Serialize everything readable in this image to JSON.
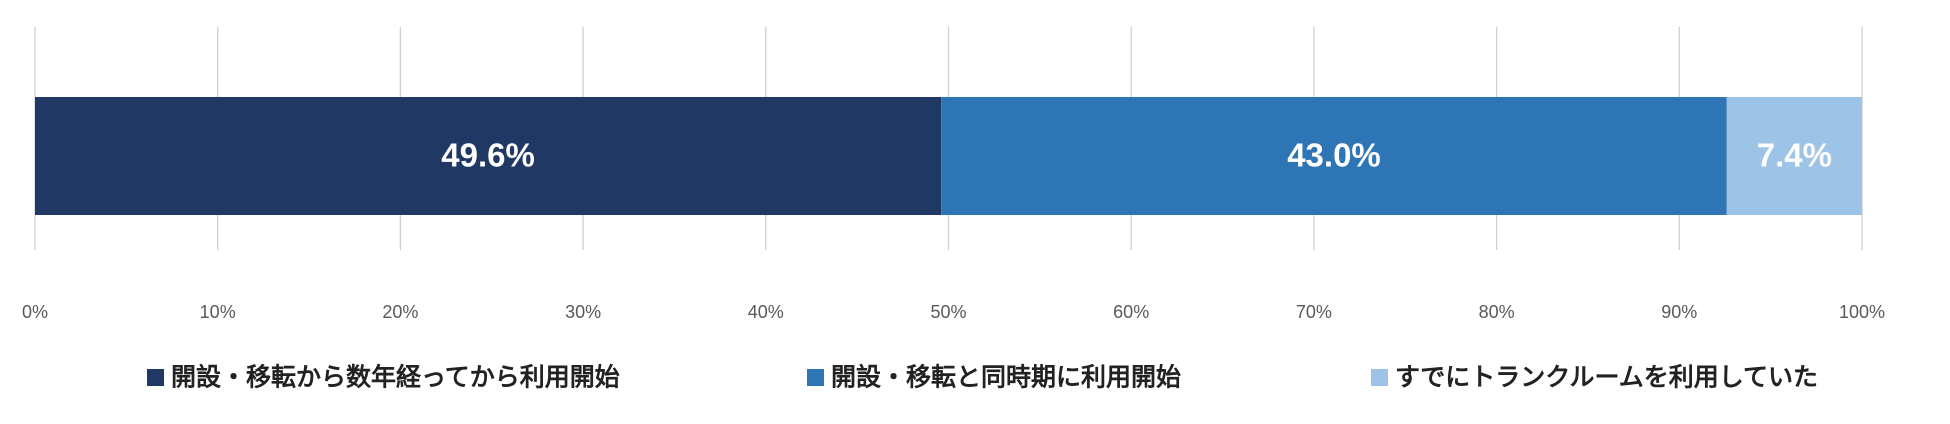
{
  "chart_data": {
    "type": "stacked-bar-horizontal",
    "categories": [
      null
    ],
    "series": [
      {
        "name": "開設・移転から数年経ってから利用開始",
        "color": "#203864",
        "values": [
          49.6
        ],
        "value_labels": [
          "49.6%"
        ]
      },
      {
        "name": "開設・移転と同時期に利用開始",
        "color": "#2e75b6",
        "values": [
          43.0
        ],
        "value_labels": [
          "43.0%"
        ]
      },
      {
        "name": "すでにトランクルームを利用していた",
        "color": "#9dc3e6",
        "values": [
          7.4
        ],
        "value_labels": [
          "7.4%"
        ]
      }
    ],
    "xlim": [
      0,
      100
    ],
    "xticks": [
      {
        "value": 0,
        "label": "0%"
      },
      {
        "value": 10,
        "label": "10%"
      },
      {
        "value": 20,
        "label": "20%"
      },
      {
        "value": 30,
        "label": "30%"
      },
      {
        "value": 40,
        "label": "40%"
      },
      {
        "value": 50,
        "label": "50%"
      },
      {
        "value": 60,
        "label": "60%"
      },
      {
        "value": 70,
        "label": "70%"
      },
      {
        "value": 80,
        "label": "80%"
      },
      {
        "value": 90,
        "label": "90%"
      },
      {
        "value": 100,
        "label": "100%"
      }
    ],
    "grid": true,
    "legend": "bottom"
  }
}
